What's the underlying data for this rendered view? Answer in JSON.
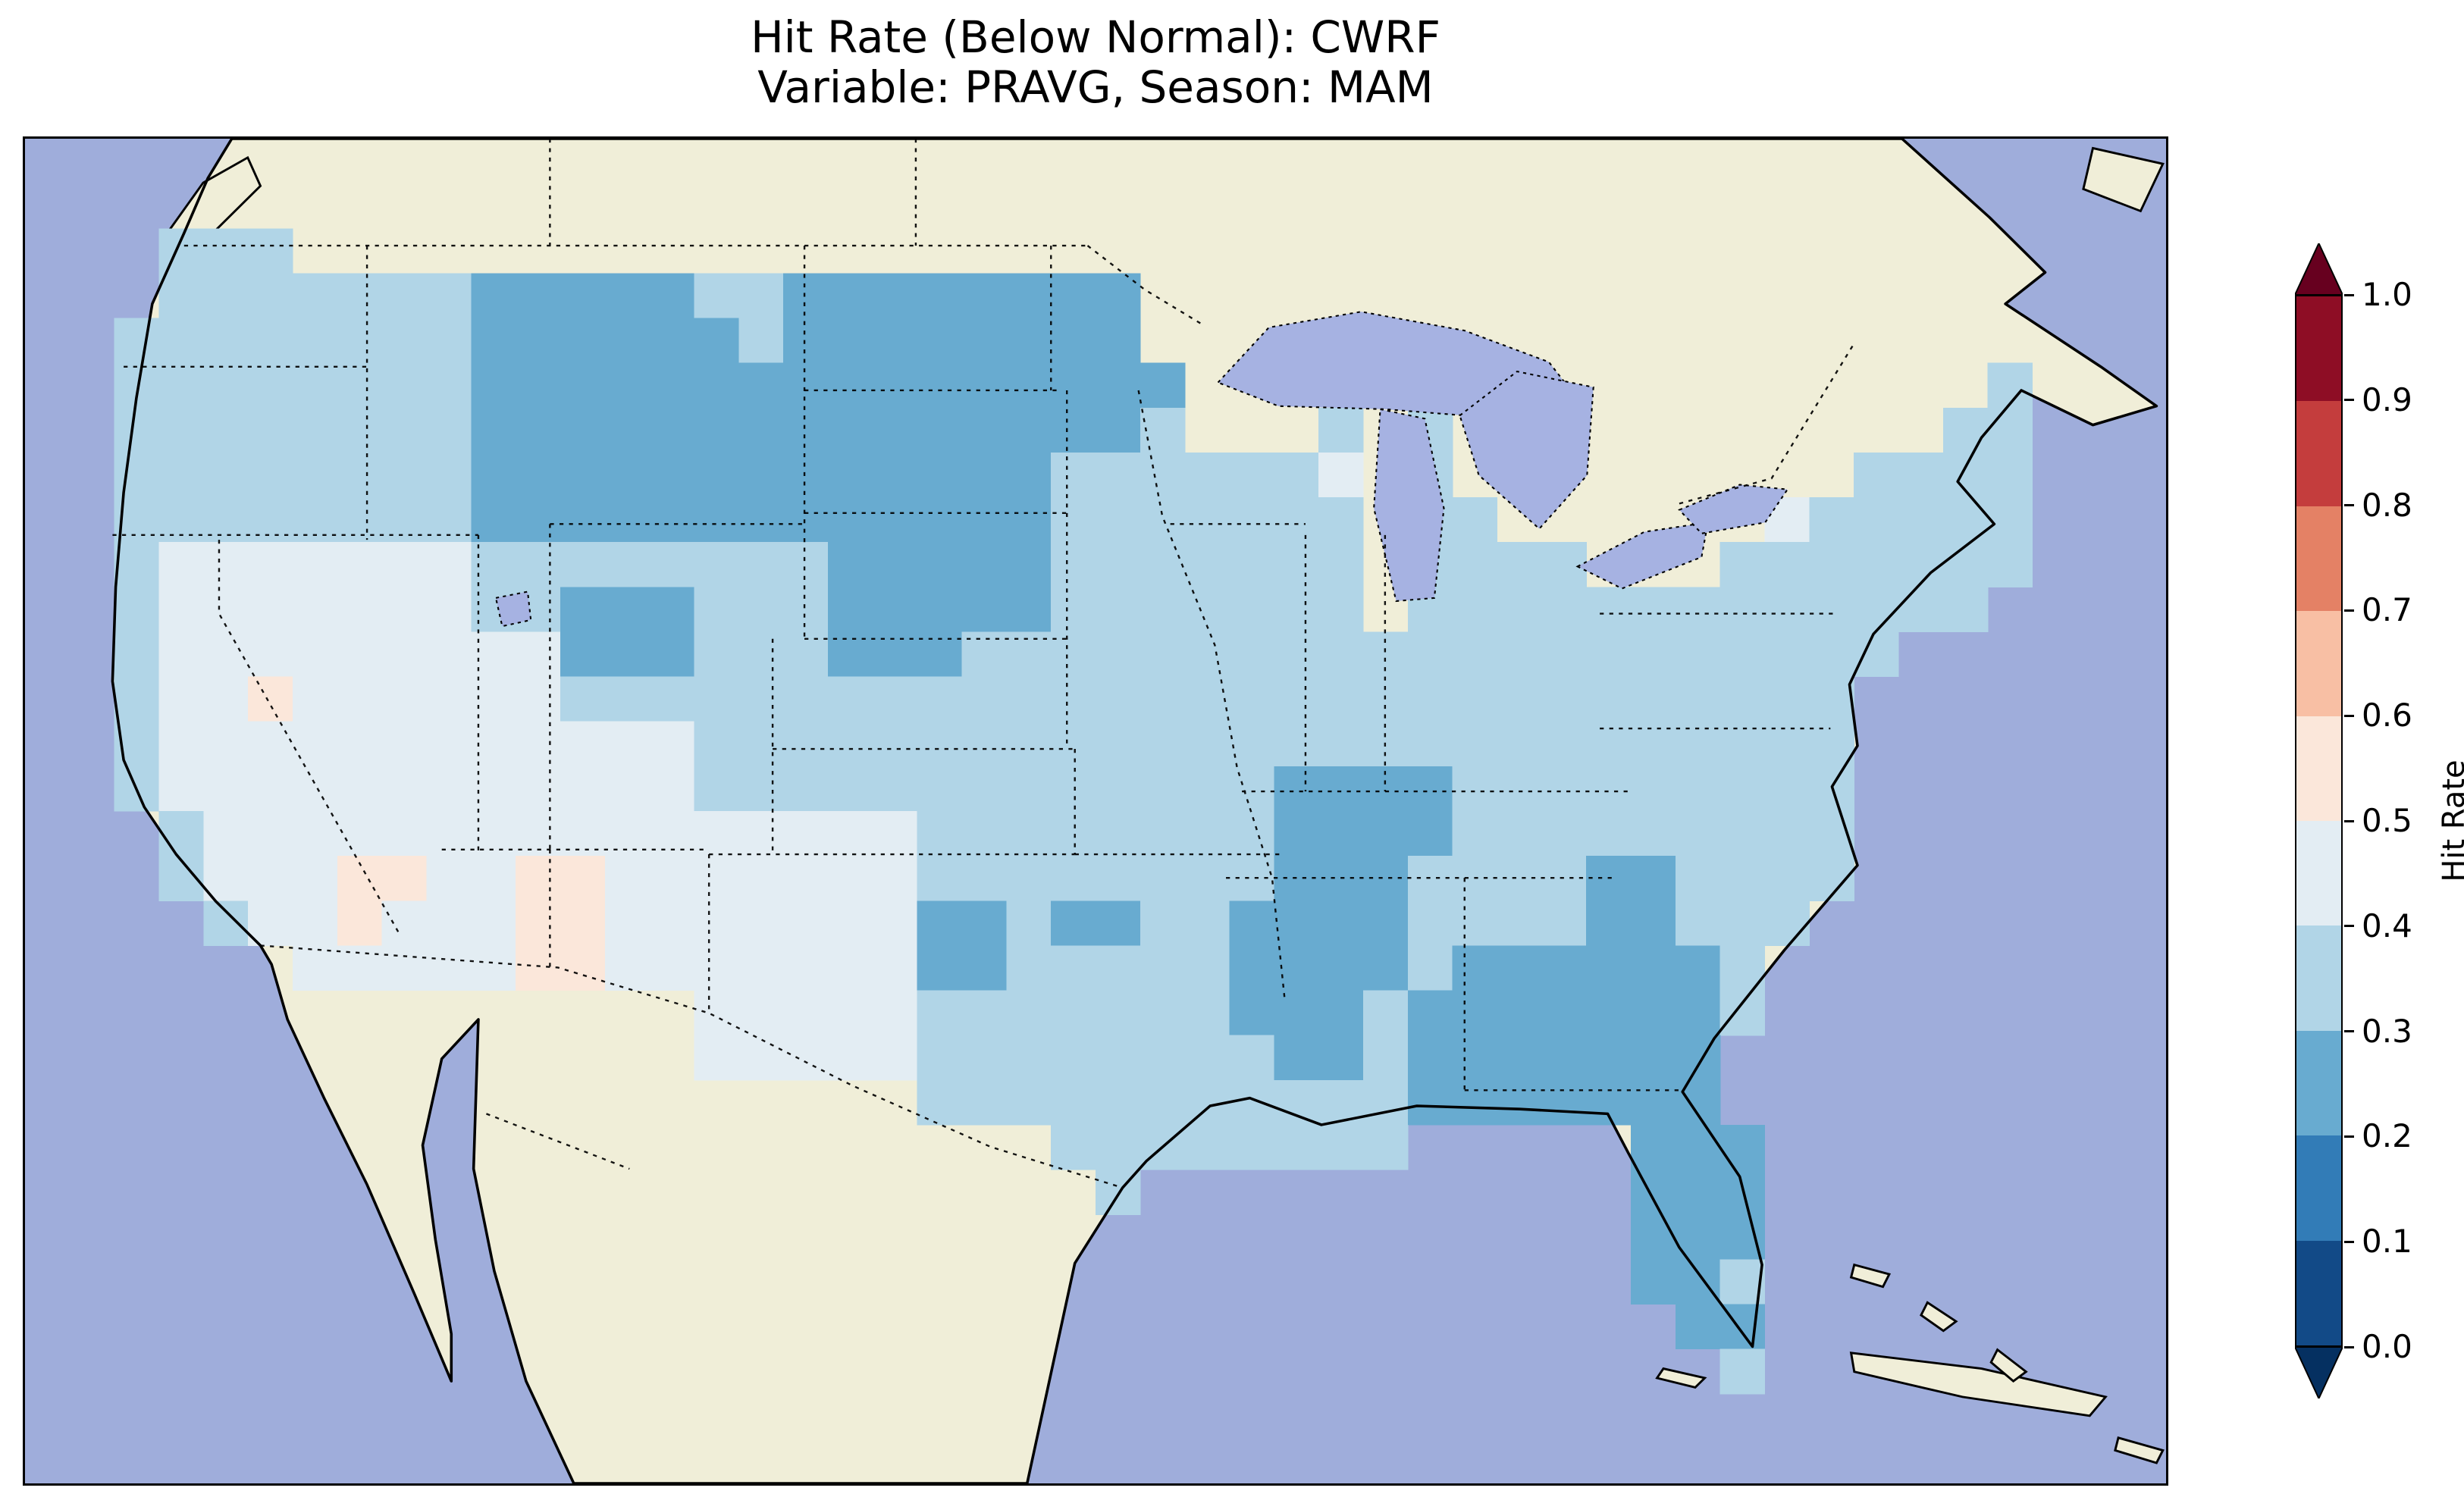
{
  "figure": {
    "title_line1": "Hit Rate (Below Normal): CWRF",
    "title_line2": "Variable: PRAVG, Season: MAM"
  },
  "chart_data": {
    "type": "heatmap",
    "title": "Hit Rate (Below Normal): CWRF",
    "subtitle": "Variable: PRAVG, Season: MAM",
    "metric": "Hit Rate",
    "forecast_category": "Below Normal",
    "model": "CWRF",
    "variable": "PRAVG",
    "season": "MAM",
    "region": "Contiguous United States",
    "colorbar": {
      "label": "Hit Rate",
      "orientation": "vertical",
      "position": "right",
      "range": [
        0.0,
        1.0
      ],
      "tick_labels": [
        "0.0",
        "0.1",
        "0.2",
        "0.3",
        "0.4",
        "0.5",
        "0.6",
        "0.7",
        "0.8",
        "0.9",
        "1.0"
      ],
      "colormap": "RdBu_r (10 discrete bins)",
      "extend": "both",
      "bin_colors_low_to_high": [
        "#124a87",
        "#327cb7",
        "#68abd0",
        "#b1d5e7",
        "#e3edf3",
        "#fbe7da",
        "#f8bfa4",
        "#e48165",
        "#c43d3d",
        "#8e0d25"
      ],
      "under_arrow_color": "#053061",
      "over_arrow_color": "#67001f"
    },
    "basemap_colors": {
      "ocean": "#9faddb",
      "non_us_land": "#f0eed8",
      "lakes": "#a6b2e2",
      "coastline": "#000000"
    },
    "value_summary": {
      "dominant_hit_rate_range": [
        0.3,
        0.5
      ],
      "low_value_patches_0.2_to_0.3": [
        "Montana",
        "North Dakota",
        "South Dakota",
        "Minnesota",
        "Utah-Colorado border",
        "Arkansas-Mississippi",
        "Louisiana",
        "Alabama-Georgia",
        "Florida peninsula",
        "Carolinas",
        "east Texas",
        "central Oklahoma"
      ],
      "high_value_patches_0.5_to_0.6": [
        "Arizona",
        "New Mexico",
        "eastern California"
      ]
    },
    "grid": {
      "cols": 48,
      "rows": 30,
      "cell_legend": {
        "O": "ocean (no data)",
        "L": "non-US land (no data)",
        "W": "lake (no data)",
        "a": "hit rate 0.2-0.3",
        "b": "hit rate 0.3-0.4",
        "c": "hit rate 0.4-0.5",
        "d": "hit rate 0.5-0.6"
      },
      "cell_colors": {
        "a": "#68abd0",
        "b": "#b1d5e7",
        "c": "#e3edf3",
        "d": "#fbe7da"
      },
      "rows_data": [
        "OOOLLLLLLLLLLLLLLLLLLLLLLLLLLLLLLLLLLLLLLLOOLLO",
        "OOOLLLLLLLLLLLLLLLLLLLLLLLLLLLLLLLLLLLLLLLOOLLL",
        "OOObbbLLLLLLLLLLLLLLLLLLLLLLLLLLLLLLLLLLLLLOOLLL",
        "OOObbbbbbbaaaaabbaaaaaaaaLLLLLLLLLLLLLLLLLLOOLLL",
        "OObbbbbbbbaaaaaabaaaaaaaaLLWWWWWWWWLLLLLLLLOLLLO",
        "OObbbbbbbbaaaaaaaaaaaaaaaaWWWWWWWWWWLLLLLLLLbLLO",
        "OObbbbbbbbaaaaaaaaaaaaaaabWWWbWbWWWLLLLLLLLbbLOO",
        "OObbbbbbbbaaaaaaaaaaaaabbbbbbcWbWWWLLLLLLbbbbLOO",
        "OObbbbbbbbaaaaaaaaaaaaabbbbbbbWbbWLLLWWcbbbbbOOO",
        "OObcccccccbbbbbbbbaaaaabbbbbbbWbbbbWWWbbbbbbbOOO",
        "OObcccccccbbaaabbbaaaaabbbbbbbWbbbbbbbbbbbbbOOOO",
        "OObcccccccccaaabbbaaabbbbbbbbbbbbbbbbbbbbbOOOOOO",
        "OObccdccccccbbbbbbbbbbbbbbbbbbbbbbbbbbbbbOOOOOOO",
        "OObccccccccccccbbbbbbbbbbbbbbbbbbbbbbbbbbOOOOOOO",
        "OObccccccccccccbbbbbbbbbbbbbaaaabbbbbbbbbOOOOOOO",
        "OOObccccccccccccccccbbbbbbbbaaaabbbbbbbbbOOOOOOO",
        "OOObcccddccddcccccccbbbbbbbbaaabbbbaabbbbOOOOOOO",
        "OOOObccdcccddcccccccaabaabbaaaabbbbaabbbOOOOOOOO",
        "OOOOOLcccccddcccccccaabbbbbaaaabaaaaaabOOOOOOOOO",
        "OOOOOLLLLLLLLLLcccccbbbbbbbaaabaaaaaaabOOOOOOOOO",
        "OOOOOOLLOLLLLLLcccccbbbbbbbbaabaaaaaaaOOOOOOOOOO",
        "OOOOOOLLOLLLLLLLLLLLbbbbbbbbbbbaaaaaaaOOOOOOOOOO",
        "OOOOOOOLLOLLLLLLLLLLLLLbbbbbbbbOOOOOaaaOOOOOOOOO",
        "OOOOOOOOLLOLLLLLLLLLLLLLbOOOOOOOOOOOaaaOOOOOOOOO",
        "OOOOOOOOOLLOLLLLLLLLLLLLLOOOOOOOOOOOaaaOOOOOOOOO",
        "OOOOOOOOOLLOLLLLLLLLLLLLLOOOOOOOOOOOaabOOLLOOOOO",
        "OOOOOOOOOOLOLLLLLLLLLLLLLOOOOOOOOOOOOaaOOOOLLOOO",
        "OOOOOOOOOOLOLLLLLLLLLLLLLOOOOOOOOOOOOObOOOOLLLOO",
        "OOOOOOOOOOOOLLLLLLLLLLLLLOOOOOOOOOOOOOOOOOLLLLLO",
        "OOOOOOOOOOOOLLLLLLLLLLLLLLOOOOOOOOOOOOOOOOOOOOOO"
      ]
    }
  }
}
